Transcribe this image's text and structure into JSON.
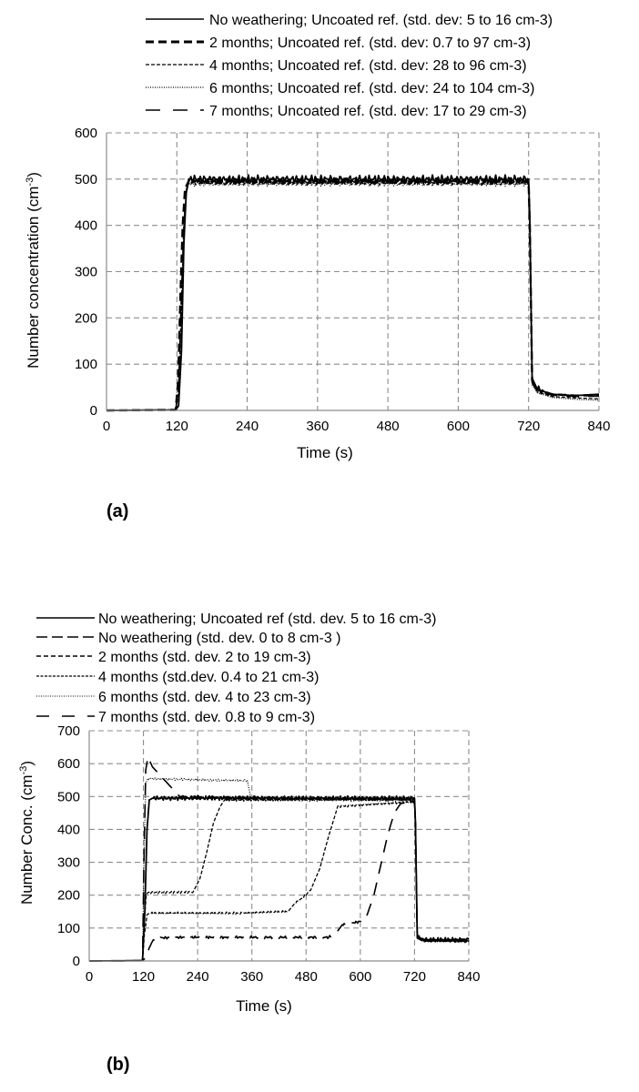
{
  "chart_data": [
    {
      "type": "line",
      "panel_label": "(a)",
      "xlabel": "Time (s)",
      "ylabel_main": "Number concentration (cm",
      "ylabel_sup": "-3",
      "ylabel_tail": ")",
      "xlim": [
        0,
        840
      ],
      "ylim": [
        0,
        600
      ],
      "xticks": [
        "0",
        "120",
        "240",
        "360",
        "480",
        "600",
        "720",
        "840"
      ],
      "yticks": [
        "0",
        "100",
        "200",
        "300",
        "400",
        "500",
        "600"
      ],
      "grid": true,
      "legend_position": "top",
      "series": [
        {
          "name": "No weathering; Uncoated ref. (std. dev: 5 to 16 cm-3)",
          "style": "solid",
          "x": [
            0,
            118,
            123,
            128,
            132,
            136,
            140,
            720,
            722,
            726,
            735,
            760,
            800,
            840
          ],
          "y": [
            0,
            1,
            10,
            130,
            360,
            470,
            500,
            500,
            420,
            70,
            45,
            35,
            32,
            35
          ]
        },
        {
          "name": "2 months; Uncoated ref. (std. dev: 0.7 to 97 cm-3)",
          "style": "heavy-dash",
          "x": [
            0,
            118,
            122,
            126,
            130,
            134,
            140,
            720,
            722,
            726,
            735,
            760,
            800,
            840
          ],
          "y": [
            0,
            1,
            60,
            240,
            400,
            480,
            495,
            495,
            400,
            65,
            45,
            35,
            32,
            33
          ]
        },
        {
          "name": "4 months; Uncoated ref. (std. dev: 28 to 96 cm-3)",
          "style": "fine-dash",
          "x": [
            0,
            118,
            123,
            127,
            132,
            136,
            140,
            720,
            722,
            726,
            735,
            760,
            800,
            840
          ],
          "y": [
            0,
            1,
            40,
            200,
            390,
            470,
            492,
            492,
            410,
            60,
            40,
            30,
            27,
            25
          ]
        },
        {
          "name": "6 months; Uncoated ref. (std. dev: 24 to 104 cm-3)",
          "style": "dotted",
          "x": [
            0,
            118,
            123,
            127,
            132,
            136,
            140,
            720,
            722,
            726,
            735,
            760,
            800,
            840
          ],
          "y": [
            0,
            1,
            30,
            180,
            380,
            468,
            490,
            490,
            405,
            55,
            38,
            28,
            24,
            22
          ]
        },
        {
          "name": "7 months; Uncoated ref. (std. dev: 17 to 29 cm-3)",
          "style": "long-dash",
          "x": [
            0,
            118,
            123,
            127,
            132,
            136,
            140,
            720,
            722,
            726,
            735,
            760,
            800,
            840
          ],
          "y": [
            0,
            1,
            50,
            220,
            400,
            475,
            496,
            496,
            410,
            60,
            42,
            33,
            30,
            31
          ]
        }
      ]
    },
    {
      "type": "line",
      "panel_label": "(b)",
      "xlabel": "Time (s)",
      "ylabel_main": "Number Conc. (cm",
      "ylabel_sup": "-3",
      "ylabel_tail": ")",
      "xlim": [
        0,
        840
      ],
      "ylim": [
        0,
        700
      ],
      "xticks": [
        "0",
        "120",
        "240",
        "360",
        "480",
        "600",
        "720",
        "840"
      ],
      "yticks": [
        "0",
        "100",
        "200",
        "300",
        "400",
        "500",
        "600",
        "700"
      ],
      "grid": true,
      "legend_position": "top",
      "series": [
        {
          "name": "No weathering; Uncoated ref (std. dev. 5 to 16 cm-3)",
          "style": "solid",
          "x": [
            0,
            118,
            123,
            128,
            133,
            140,
            720,
            722,
            726,
            740,
            840
          ],
          "y": [
            0,
            1,
            150,
            400,
            490,
            495,
            495,
            420,
            75,
            65,
            65
          ]
        },
        {
          "name": "No weathering (std. dev. 0 to 8 cm-3 )",
          "style": "long-dash",
          "x": [
            0,
            118,
            121,
            125,
            130,
            140,
            160,
            200,
            720,
            722,
            726,
            740,
            840
          ],
          "y": [
            0,
            1,
            300,
            580,
            620,
            590,
            560,
            500,
            490,
            420,
            70,
            62,
            60
          ]
        },
        {
          "name": "2 months (std. dev. 2 to 19 cm-3)",
          "style": "fine-dash",
          "x": [
            0,
            118,
            122,
            126,
            130,
            180,
            230,
            245,
            260,
            275,
            290,
            300,
            720,
            722,
            726,
            740,
            840
          ],
          "y": [
            0,
            1,
            120,
            200,
            208,
            208,
            210,
            250,
            330,
            420,
            470,
            490,
            490,
            420,
            70,
            62,
            60
          ]
        },
        {
          "name": "4 months (std.dev. 0.4 to 21 cm-3)",
          "style": "fine-dash",
          "x": [
            0,
            118,
            122,
            128,
            135,
            200,
            340,
            440,
            455,
            470,
            490,
            510,
            530,
            550,
            720,
            722,
            726,
            740,
            840
          ],
          "y": [
            0,
            1,
            80,
            140,
            145,
            145,
            145,
            150,
            175,
            190,
            215,
            280,
            380,
            470,
            485,
            420,
            70,
            62,
            60
          ]
        },
        {
          "name": "6 months (std. dev. 4 to 23 cm-3)",
          "style": "dotted",
          "x": [
            0,
            118,
            121,
            125,
            130,
            200,
            350,
            357,
            365,
            380,
            720,
            722,
            726,
            740,
            840
          ],
          "y": [
            0,
            1,
            300,
            540,
            555,
            552,
            548,
            500,
            490,
            490,
            488,
            420,
            70,
            62,
            60
          ]
        },
        {
          "name": "7 months (std. dev. 0.8 to 9 cm-3)",
          "style": "long-dash",
          "x": [
            0,
            118,
            125,
            133,
            140,
            150,
            200,
            300,
            530,
            545,
            560,
            580,
            600,
            615,
            630,
            645,
            660,
            675,
            690,
            720,
            722,
            726,
            740,
            840
          ],
          "y": [
            0,
            1,
            10,
            40,
            60,
            70,
            72,
            72,
            72,
            82,
            110,
            115,
            120,
            140,
            200,
            290,
            380,
            450,
            480,
            485,
            420,
            70,
            62,
            60
          ]
        }
      ]
    }
  ]
}
